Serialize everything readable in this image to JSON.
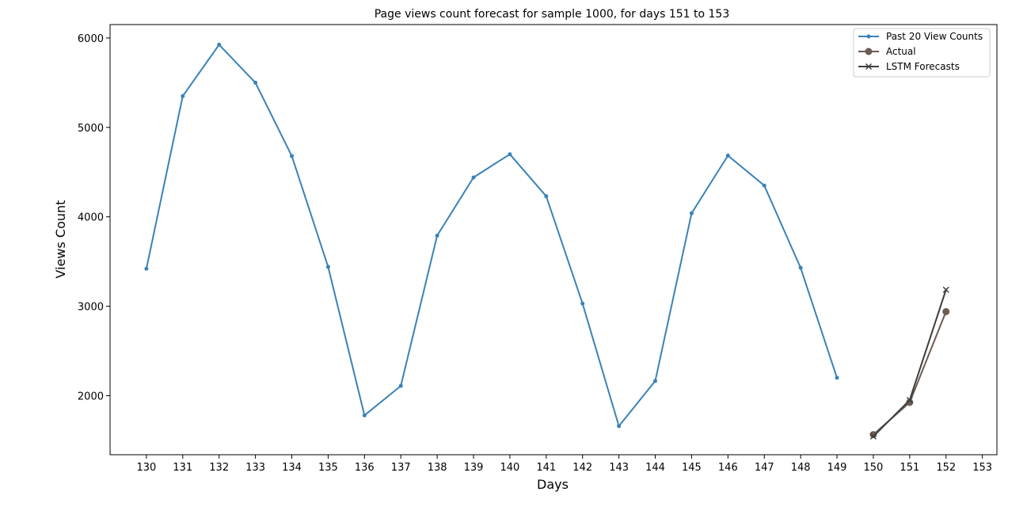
{
  "chart_data": {
    "type": "line",
    "title": "Page views count forecast for sample 1000, for days 151 to 153",
    "xlabel": "Days",
    "ylabel": "Views Count",
    "xlim": [
      129,
      153.4
    ],
    "ylim": [
      1340,
      6150
    ],
    "x_ticks": [
      130,
      131,
      132,
      133,
      134,
      135,
      136,
      137,
      138,
      139,
      140,
      141,
      142,
      143,
      144,
      145,
      146,
      147,
      148,
      149,
      150,
      151,
      152,
      153
    ],
    "y_ticks": [
      2000,
      3000,
      4000,
      5000,
      6000
    ],
    "grid": false,
    "legend_position": "top-right",
    "series": [
      {
        "name": "Past 20 View Counts",
        "color": "#3a82b8",
        "marker": "dot",
        "x": [
          130,
          131,
          132,
          133,
          134,
          135,
          136,
          137,
          138,
          139,
          140,
          141,
          142,
          143,
          144,
          145,
          146,
          147,
          148,
          149
        ],
        "values": [
          3420,
          5350,
          5925,
          5500,
          4680,
          3440,
          1780,
          2110,
          3790,
          4440,
          4700,
          4230,
          3030,
          1660,
          2165,
          4040,
          4685,
          4350,
          3430,
          2200
        ]
      },
      {
        "name": "Actual",
        "color": "#6b5b53",
        "marker": "circle",
        "x": [
          150,
          151,
          152
        ],
        "values": [
          1565,
          1925,
          2940
        ]
      },
      {
        "name": "LSTM Forecasts",
        "color": "#3d3d3d",
        "marker": "x",
        "x": [
          150,
          151,
          152
        ],
        "values": [
          1545,
          1950,
          3185
        ]
      }
    ]
  }
}
